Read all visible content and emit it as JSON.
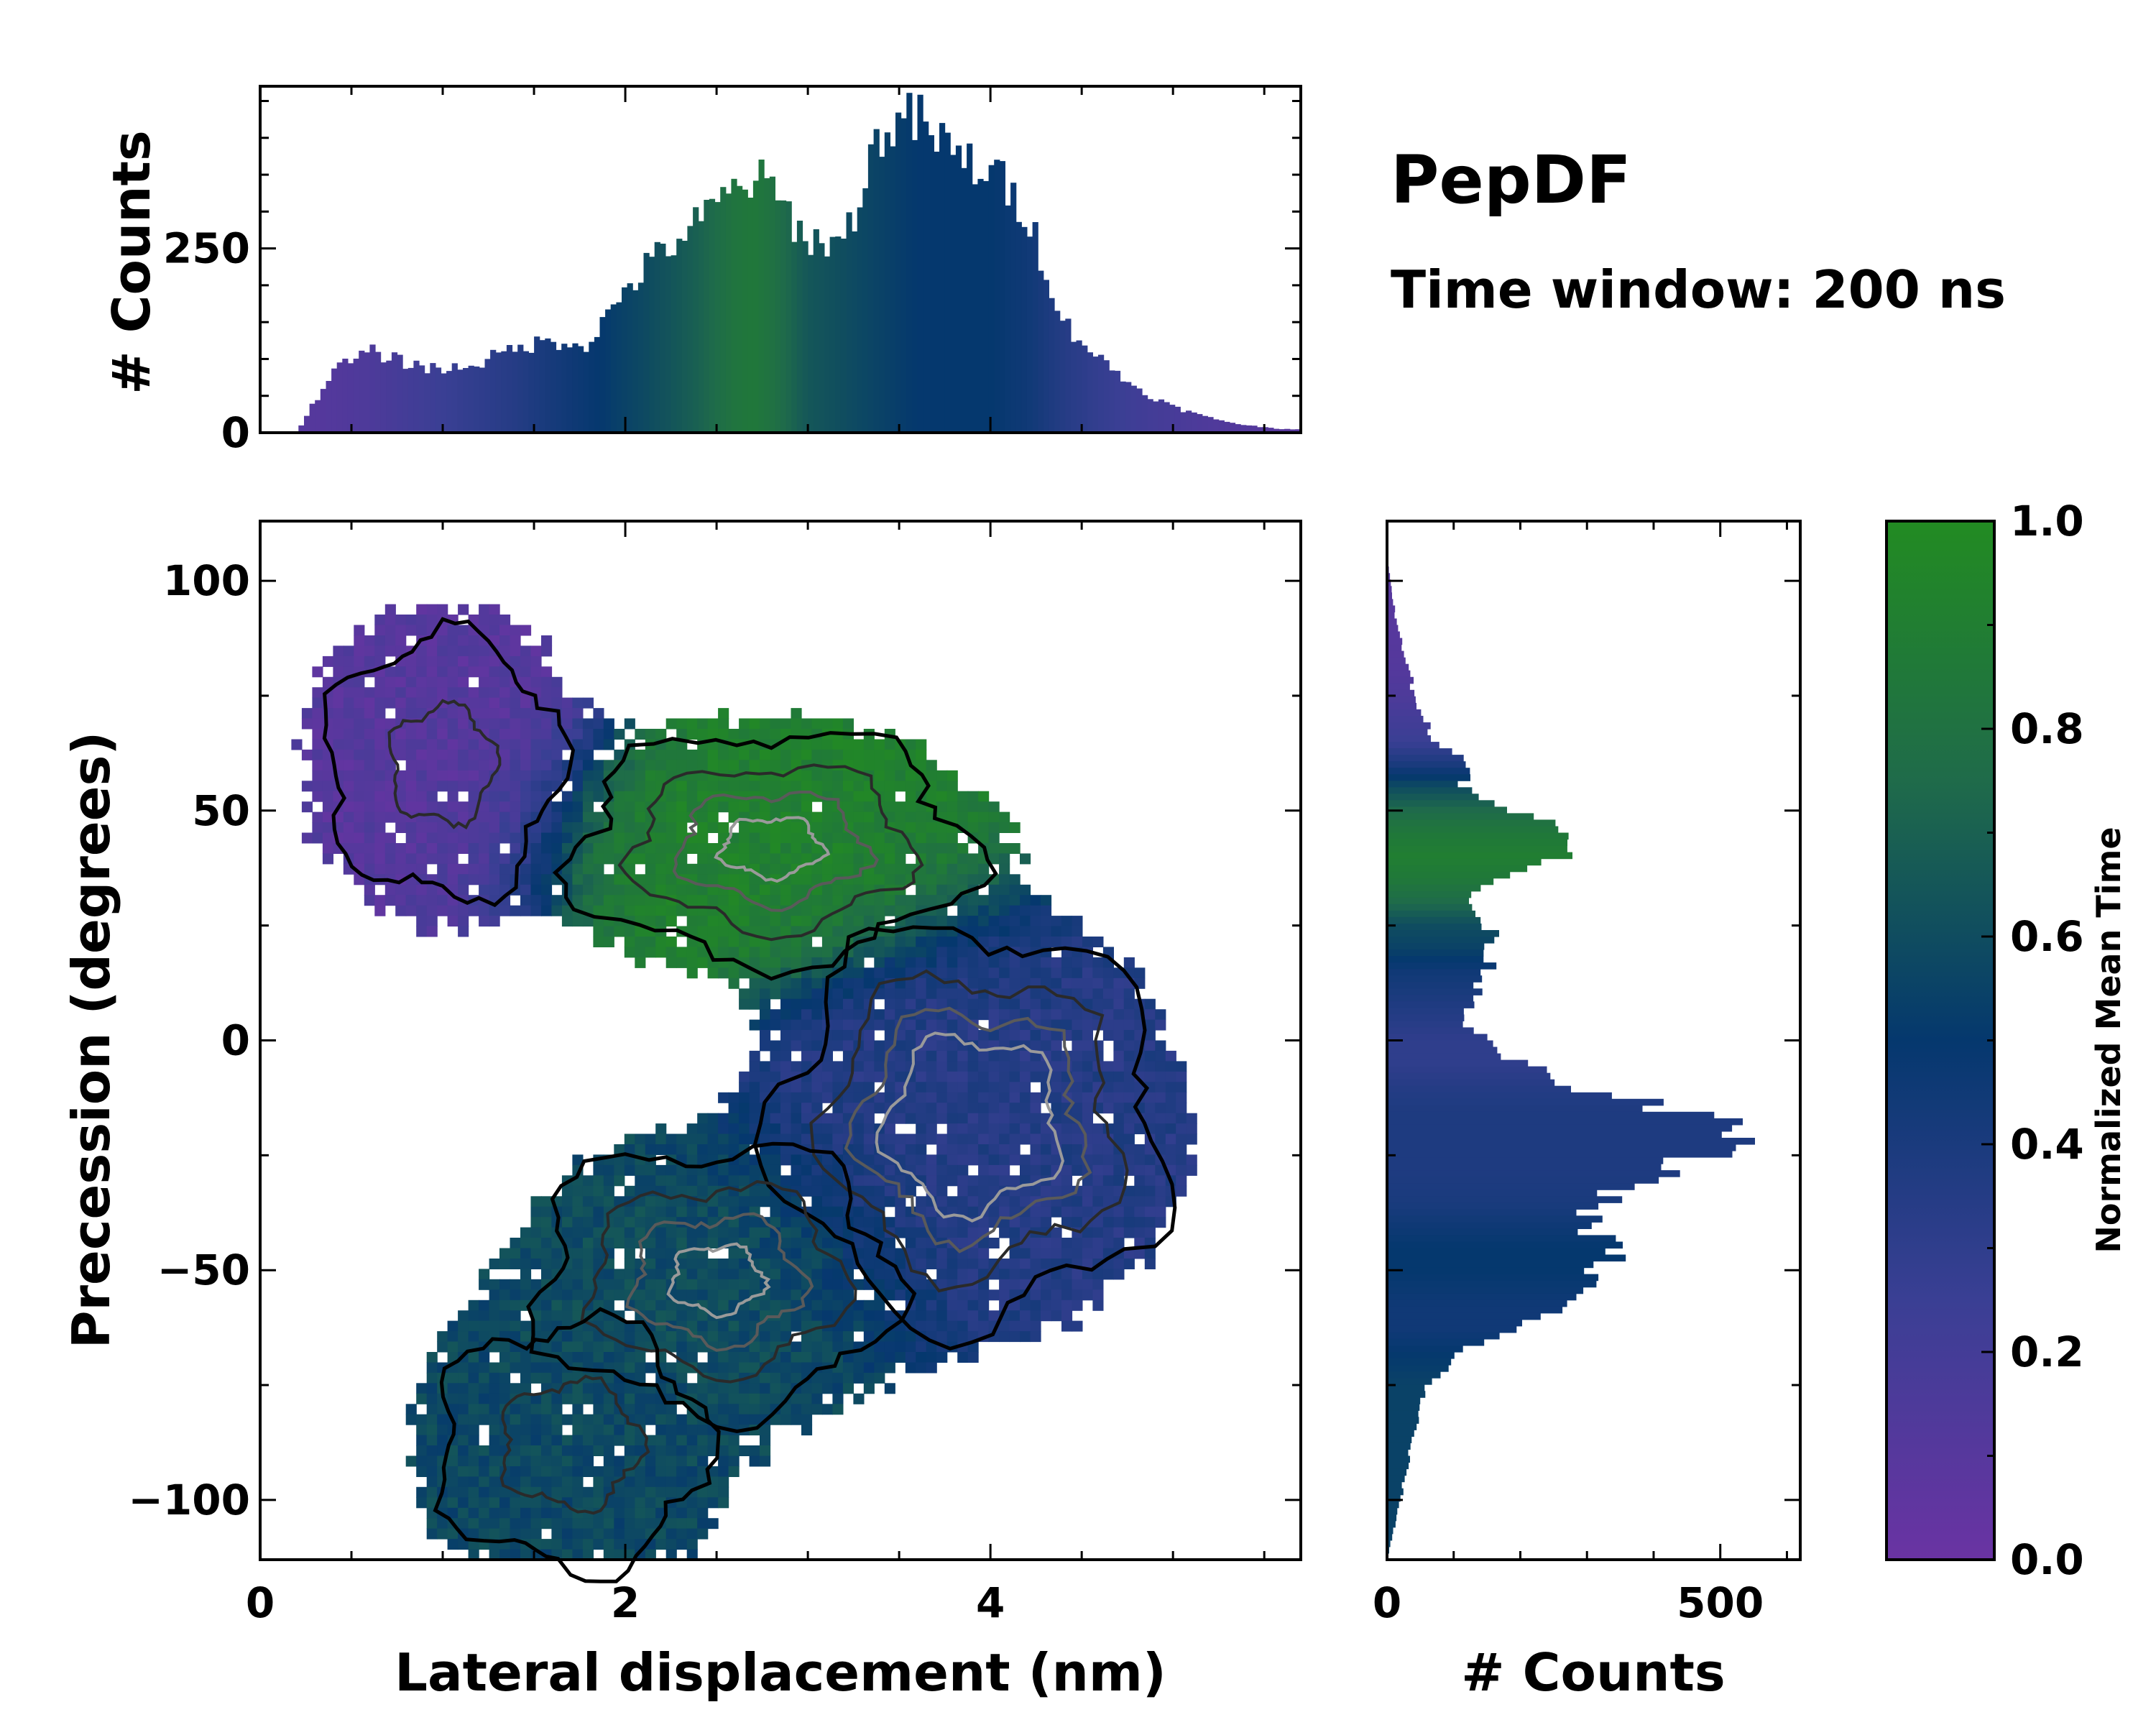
{
  "title": "PepDF",
  "subtitle": "Time window: 200 ns",
  "chart_data": [
    {
      "id": "main_heatmap",
      "type": "heatmap",
      "xlabel": "Lateral displacement (nm)",
      "ylabel": "Precession (degrees)",
      "xlim": [
        0,
        5.7
      ],
      "ylim": [
        -113,
        113
      ],
      "xticks": [
        0,
        2,
        4
      ],
      "yticks": [
        100,
        50,
        0,
        -50,
        -100
      ],
      "x_tick_labels": [
        "0",
        "2",
        "4"
      ],
      "y_tick_labels": [
        "100",
        "50",
        "0",
        "−50",
        "−100"
      ],
      "clusters": [
        {
          "name": "upper-left",
          "x": 1.0,
          "y": 60,
          "sx": 0.45,
          "sy": 20,
          "w": 0.55,
          "time": 0.1
        },
        {
          "name": "upper-middle",
          "x": 2.8,
          "y": 42,
          "sx": 0.6,
          "sy": 14,
          "w": 1.0,
          "time": 0.92
        },
        {
          "name": "center-right",
          "x": 3.9,
          "y": -18,
          "sx": 0.55,
          "sy": 22,
          "w": 1.3,
          "time": 0.35
        },
        {
          "name": "lower-middle",
          "x": 2.5,
          "y": -52,
          "sx": 0.55,
          "sy": 16,
          "w": 1.0,
          "time": 0.6
        },
        {
          "name": "lower-left",
          "x": 1.7,
          "y": -88,
          "sx": 0.5,
          "sy": 18,
          "w": 0.6,
          "time": 0.58
        }
      ]
    },
    {
      "id": "top_histogram",
      "type": "bar",
      "ylabel": "# Counts",
      "ylim": [
        0,
        470
      ],
      "yticks": [
        0,
        250
      ],
      "y_tick_labels": [
        "0",
        "250"
      ],
      "x_range": [
        0,
        5.7
      ],
      "bins": 190,
      "profile_x": [
        0.2,
        0.4,
        0.6,
        0.8,
        1.0,
        1.2,
        1.4,
        1.6,
        1.8,
        2.0,
        2.2,
        2.4,
        2.6,
        2.7,
        2.8,
        3.0,
        3.2,
        3.4,
        3.6,
        3.8,
        4.0,
        4.2,
        4.4,
        4.6,
        4.8,
        5.0,
        5.2,
        5.4,
        5.6
      ],
      "profile_counts": [
        0,
        85,
        110,
        95,
        85,
        95,
        115,
        125,
        120,
        195,
        245,
        285,
        330,
        345,
        330,
        260,
        260,
        410,
        425,
        375,
        355,
        300,
        150,
        100,
        60,
        35,
        20,
        10,
        5
      ],
      "profile_time": [
        0.1,
        0.12,
        0.15,
        0.2,
        0.25,
        0.3,
        0.35,
        0.42,
        0.48,
        0.55,
        0.62,
        0.7,
        0.82,
        0.85,
        0.8,
        0.65,
        0.6,
        0.55,
        0.5,
        0.5,
        0.5,
        0.45,
        0.35,
        0.28,
        0.22,
        0.18,
        0.14,
        0.12,
        0.1
      ]
    },
    {
      "id": "right_histogram",
      "type": "bar",
      "orientation": "horizontal",
      "xlabel": "# Counts",
      "xlim": [
        0,
        620
      ],
      "xticks": [
        0,
        500
      ],
      "x_tick_labels": [
        "0",
        "500"
      ],
      "y_range": [
        -113,
        113
      ],
      "bins": 160,
      "profile_y": [
        -113,
        -100,
        -85,
        -75,
        -68,
        -63,
        -58,
        -50,
        -45,
        -40,
        -35,
        -28,
        -20,
        -15,
        -10,
        -5,
        0,
        5,
        10,
        15,
        20,
        25,
        30,
        35,
        40,
        45,
        50,
        55,
        60,
        65,
        70,
        75,
        80,
        90,
        100,
        105
      ],
      "profile_counts": [
        0,
        20,
        40,
        60,
        110,
        180,
        260,
        320,
        340,
        290,
        320,
        430,
        540,
        430,
        270,
        200,
        140,
        120,
        140,
        150,
        160,
        150,
        120,
        150,
        280,
        300,
        180,
        110,
        130,
        70,
        60,
        40,
        35,
        15,
        5,
        0
      ],
      "profile_time": [
        0.55,
        0.55,
        0.55,
        0.55,
        0.5,
        0.45,
        0.45,
        0.5,
        0.5,
        0.45,
        0.4,
        0.38,
        0.38,
        0.38,
        0.35,
        0.3,
        0.3,
        0.35,
        0.4,
        0.45,
        0.55,
        0.6,
        0.75,
        0.85,
        0.9,
        0.85,
        0.75,
        0.6,
        0.4,
        0.25,
        0.2,
        0.15,
        0.12,
        0.1,
        0.1,
        0.1
      ]
    },
    {
      "id": "colorbar",
      "type": "colorbar",
      "label": "Normalized Mean Time",
      "range": [
        0,
        1
      ],
      "ticks": [
        0.0,
        0.2,
        0.4,
        0.6,
        0.8,
        1.0
      ],
      "tick_labels": [
        "0.0",
        "0.2",
        "0.4",
        "0.6",
        "0.8",
        "1.0"
      ],
      "colormap_stops": [
        {
          "v": 0.0,
          "color": "#6a33a3"
        },
        {
          "v": 0.25,
          "color": "#3a3f94"
        },
        {
          "v": 0.5,
          "color": "#05386e"
        },
        {
          "v": 0.75,
          "color": "#1f6b4a"
        },
        {
          "v": 1.0,
          "color": "#228b22"
        }
      ]
    }
  ]
}
